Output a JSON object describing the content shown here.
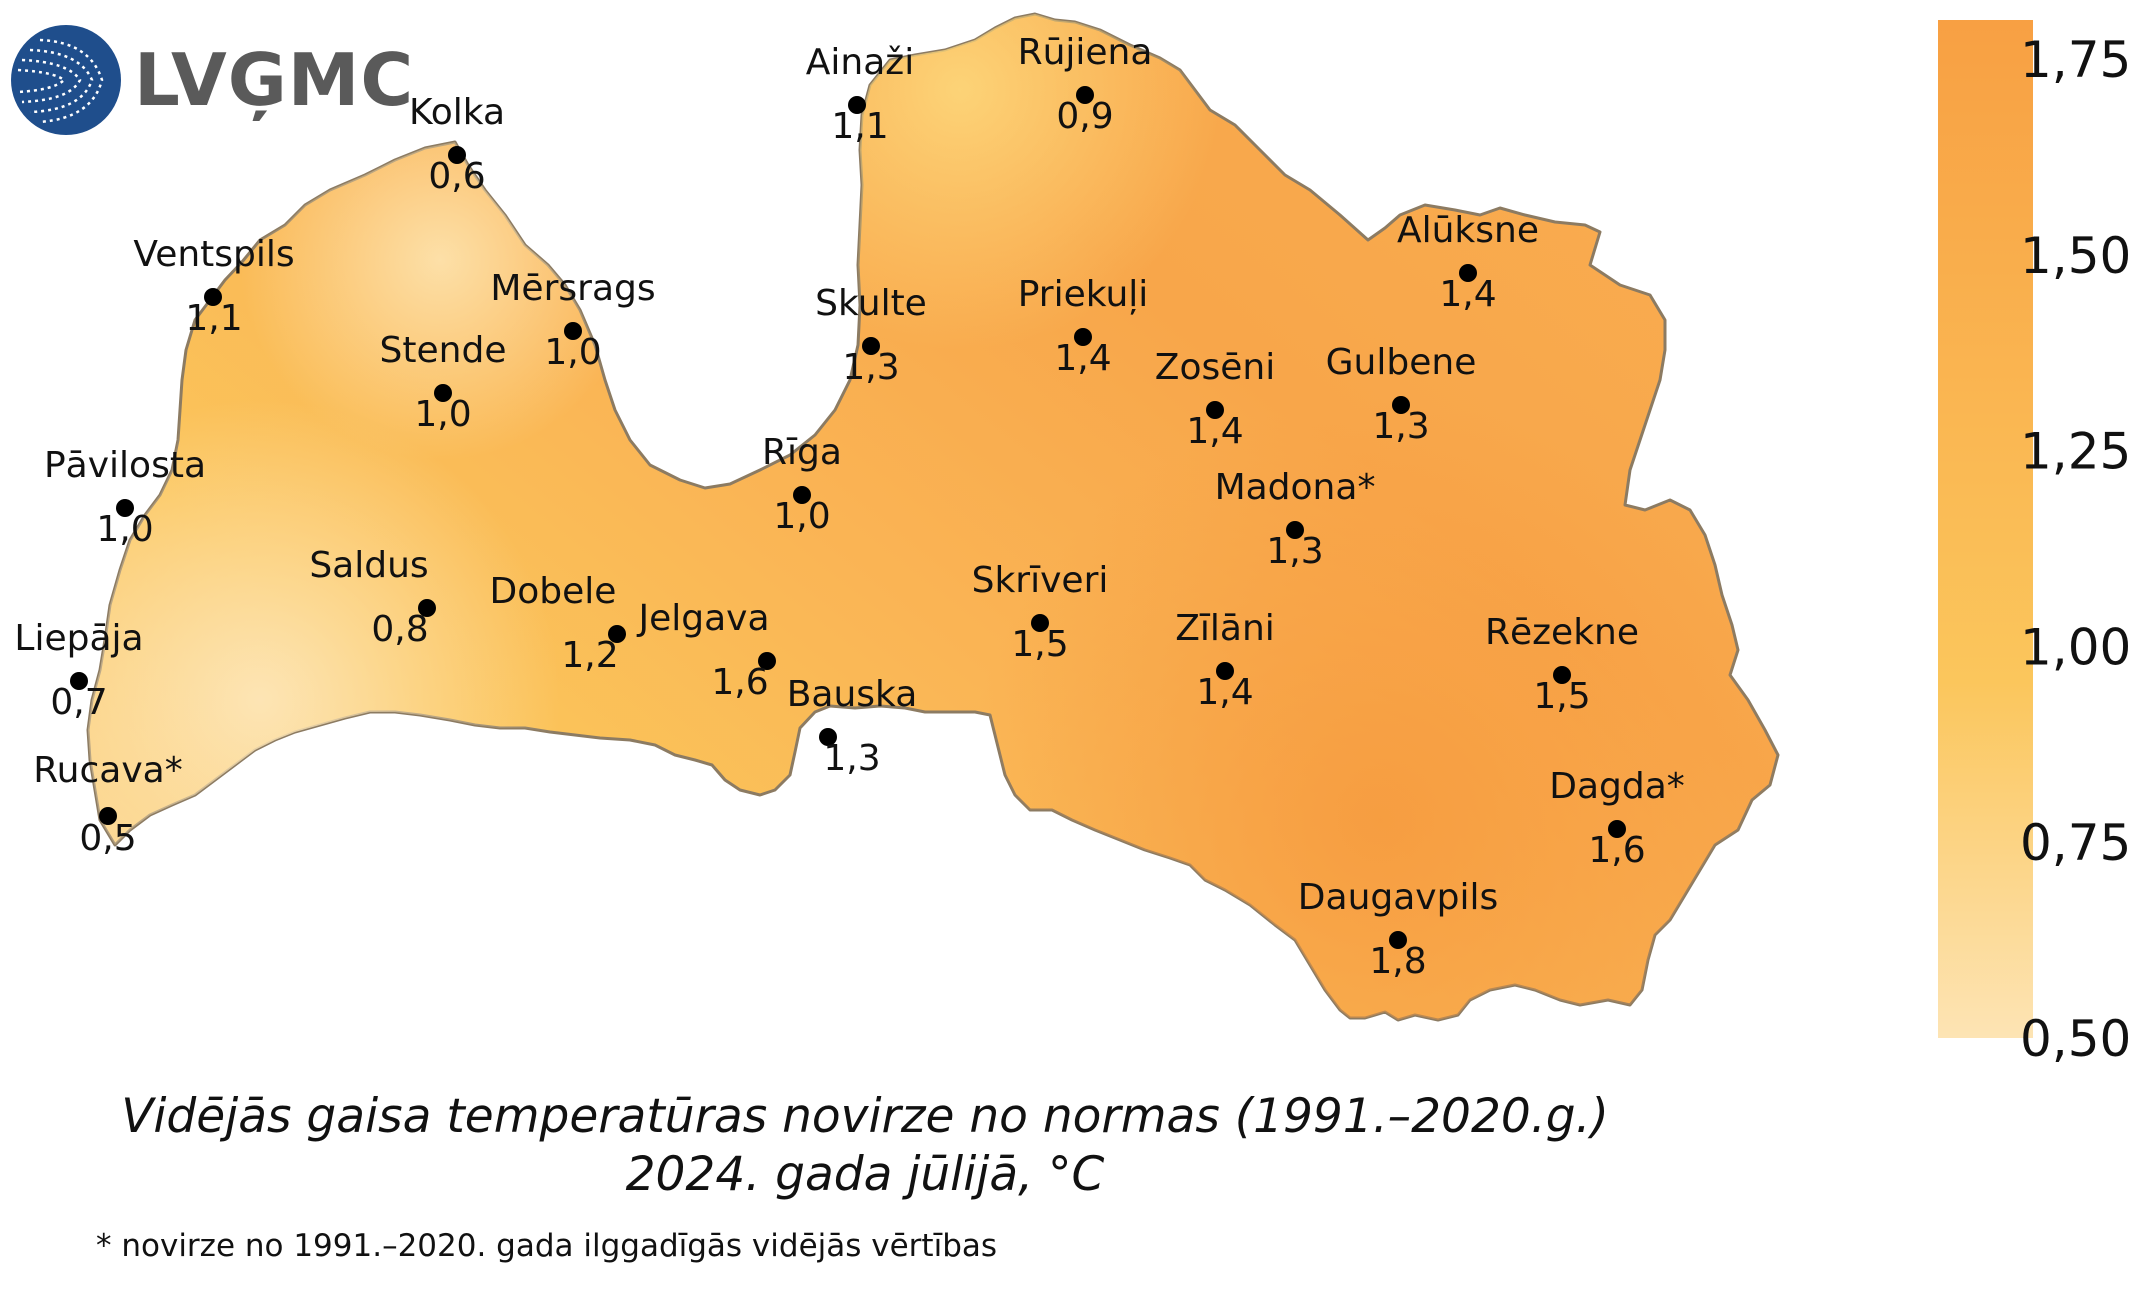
{
  "logo": {
    "text": "LVĢMC"
  },
  "title": {
    "line1": "Vidējās gaisa temperatūras novirze no normas (1991.–2020.g.)",
    "line2": "2024. gada jūlijā, °C"
  },
  "footnote": "* novirze no 1991.–2020. gada ilggadīgās vidējās vērtības",
  "colorbar": {
    "ticks": [
      "1,75",
      "1,50",
      "1,25",
      "1,00",
      "0,75",
      "0,50"
    ],
    "range": [
      0.5,
      1.8
    ],
    "colors": {
      "low": "#fde2ae",
      "mid": "#fbc45a",
      "high": "#f7a042"
    }
  },
  "map_colors": {
    "fill_base": "#fbc45a",
    "outline": "#9a8a70"
  },
  "stations": [
    {
      "name": "Kolka",
      "value": "0,6",
      "v": 0.6
    },
    {
      "name": "Ventspils",
      "value": "1,1",
      "v": 1.1
    },
    {
      "name": "Mērsrags",
      "value": "1,0",
      "v": 1.0
    },
    {
      "name": "Stende",
      "value": "1,0",
      "v": 1.0
    },
    {
      "name": "Pāvilosta",
      "value": "1,0",
      "v": 1.0
    },
    {
      "name": "Saldus",
      "value": "0,8",
      "v": 0.8
    },
    {
      "name": "Liepāja",
      "value": "0,7",
      "v": 0.7
    },
    {
      "name": "Rucava*",
      "value": "0,5",
      "v": 0.5
    },
    {
      "name": "Dobele",
      "value": "1,2",
      "v": 1.2
    },
    {
      "name": "Jelgava",
      "value": "1,6",
      "v": 1.6
    },
    {
      "name": "Bauska",
      "value": "1,3",
      "v": 1.3
    },
    {
      "name": "Rīga",
      "value": "1,0",
      "v": 1.0
    },
    {
      "name": "Skulte",
      "value": "1,3",
      "v": 1.3
    },
    {
      "name": "Ainaži",
      "value": "1,1",
      "v": 1.1
    },
    {
      "name": "Rūjiena",
      "value": "0,9",
      "v": 0.9
    },
    {
      "name": "Priekuļi",
      "value": "1,4",
      "v": 1.4
    },
    {
      "name": "Alūksne",
      "value": "1,4",
      "v": 1.4
    },
    {
      "name": "Zosēni",
      "value": "1,4",
      "v": 1.4
    },
    {
      "name": "Gulbene",
      "value": "1,3",
      "v": 1.3
    },
    {
      "name": "Madona*",
      "value": "1,3",
      "v": 1.3
    },
    {
      "name": "Skrīveri",
      "value": "1,5",
      "v": 1.5
    },
    {
      "name": "Zīlāni",
      "value": "1,4",
      "v": 1.4
    },
    {
      "name": "Rēzekne",
      "value": "1,5",
      "v": 1.5
    },
    {
      "name": "Dagda*",
      "value": "1,6",
      "v": 1.6
    },
    {
      "name": "Daugavpils",
      "value": "1,8",
      "v": 1.8
    }
  ]
}
